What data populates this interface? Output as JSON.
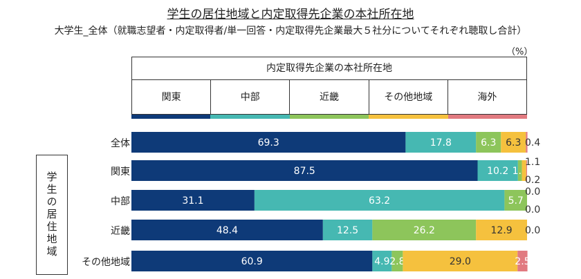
{
  "chart_data": {
    "type": "bar",
    "orientation": "horizontal-stacked-100",
    "title": "学生の居住地域と内定取得先企業の本社所在地",
    "subtitle": "大学生_全体（就職志望者・内定取得者/単一回答・内定取得先企業最大５社分についてそれぞれ聴取し合計）",
    "unit": "（%）",
    "legend_title": "内定取得先企業の本社所在地",
    "row_axis_label": "学生の居住地域",
    "categories": [
      "全体",
      "関東",
      "中部",
      "近畿",
      "その他地域"
    ],
    "series": [
      {
        "name": "関東",
        "color": "#0e3a78",
        "values": [
          69.3,
          87.5,
          31.1,
          48.4,
          60.9
        ]
      },
      {
        "name": "中部",
        "color": "#46b8b2",
        "values": [
          17.8,
          10.2,
          63.2,
          12.5,
          4.9
        ]
      },
      {
        "name": "近畿",
        "color": "#8dc55b",
        "values": [
          6.3,
          1.0,
          5.7,
          26.2,
          2.8
        ]
      },
      {
        "name": "その他地域",
        "color": "#f5c13e",
        "values": [
          6.3,
          1.1,
          0.0,
          12.9,
          29.0
        ]
      },
      {
        "name": "海外",
        "color": "#e17a80",
        "values": [
          0.4,
          0.2,
          0.0,
          0.0,
          2.5
        ]
      }
    ],
    "xlim": [
      0,
      100
    ]
  }
}
